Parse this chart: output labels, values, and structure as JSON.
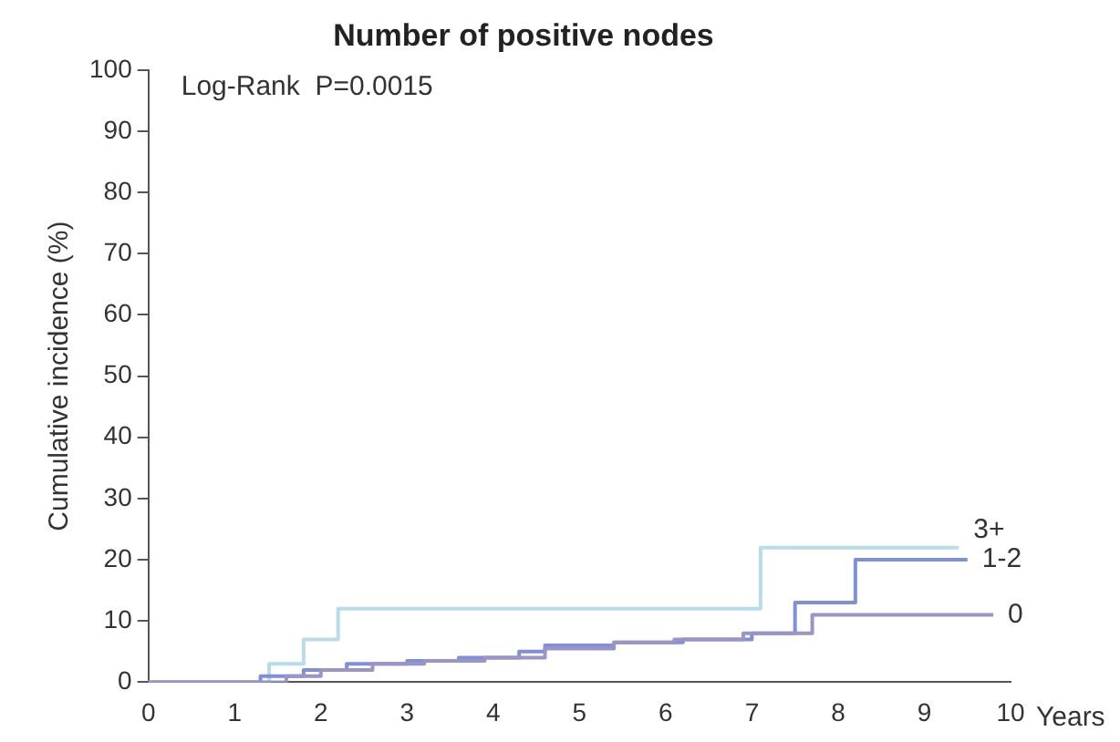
{
  "chart_data": {
    "type": "step",
    "title": "Number of positive nodes",
    "xlabel": "Years",
    "ylabel": "Cumulative incidence (%)",
    "annotations": [
      "Log-Rank  P=0.0015"
    ],
    "xlim": [
      0,
      10
    ],
    "xticks": [
      0,
      1,
      2,
      3,
      4,
      5,
      6,
      7,
      8,
      9,
      10
    ],
    "ylim": [
      0,
      100
    ],
    "yticks": [
      0,
      10,
      20,
      30,
      40,
      50,
      60,
      70,
      80,
      90,
      100
    ],
    "grid": false,
    "legend": false,
    "series": [
      {
        "name": "0",
        "color": "#9a94c8",
        "x": [
          0,
          1.0,
          1.6,
          2.0,
          2.6,
          3.2,
          3.9,
          4.6,
          5.4,
          6.1,
          6.9,
          7.7,
          9.8
        ],
        "values": [
          0,
          0,
          1,
          2,
          3,
          3.5,
          4,
          5.5,
          6.5,
          7,
          8,
          11,
          11
        ]
      },
      {
        "name": "1-2",
        "color": "#7f8fd8",
        "x": [
          0,
          1.0,
          1.3,
          1.8,
          2.3,
          3.0,
          3.6,
          4.3,
          4.6,
          5.4,
          6.2,
          7.0,
          7.5,
          8.2,
          9.5
        ],
        "values": [
          0,
          0,
          1,
          2,
          3,
          3.5,
          4,
          5,
          6,
          6.5,
          7,
          8,
          13,
          20,
          20
        ]
      },
      {
        "name": "3+",
        "color": "#b8dce8",
        "x": [
          0,
          1.0,
          1.4,
          1.8,
          2.2,
          7.1,
          9.4
        ],
        "values": [
          0,
          0,
          3,
          7,
          12,
          22,
          22
        ]
      }
    ]
  }
}
